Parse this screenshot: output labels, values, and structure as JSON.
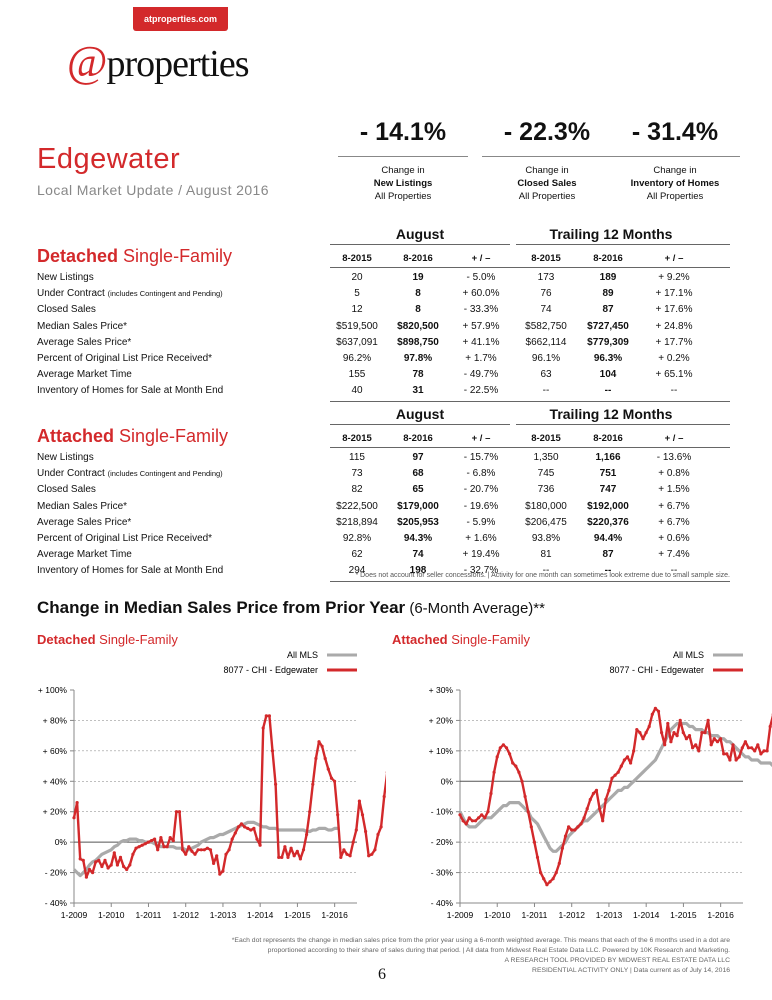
{
  "header": {
    "site": "atproperties.com",
    "logo_at": "@",
    "logo_text": "properties",
    "area": "Edgewater",
    "subtitle": "Local Market Update / August 2016"
  },
  "kpis": [
    {
      "value": "- 14.1%",
      "line1": "Change in",
      "line2": "New Listings",
      "line3": "All Properties"
    },
    {
      "value": "- 22.3%",
      "line1": "Change in",
      "line2": "Closed Sales",
      "line3": "All Properties"
    },
    {
      "value": "- 31.4%",
      "line1": "Change in",
      "line2": "Inventory of Homes",
      "line3": "All Properties"
    }
  ],
  "columns": {
    "group1": "August",
    "group2": "Trailing 12 Months",
    "h": [
      "8-2015",
      "8-2016",
      "+ / –",
      "8-2015",
      "8-2016",
      "+ / –"
    ]
  },
  "detached": {
    "title_bold": "Detached",
    "title_rest": " Single-Family",
    "rows": [
      {
        "label": "New Listings",
        "small": "",
        "v": [
          "20",
          "19",
          "- 5.0%",
          "173",
          "189",
          "+ 9.2%"
        ]
      },
      {
        "label": "Under Contract ",
        "small": "(includes Contingent and Pending)",
        "v": [
          "5",
          "8",
          "+ 60.0%",
          "76",
          "89",
          "+ 17.1%"
        ]
      },
      {
        "label": "Closed Sales",
        "small": "",
        "v": [
          "12",
          "8",
          "- 33.3%",
          "74",
          "87",
          "+ 17.6%"
        ]
      },
      {
        "label": "Median Sales Price*",
        "small": "",
        "v": [
          "$519,500",
          "$820,500",
          "+ 57.9%",
          "$582,750",
          "$727,450",
          "+ 24.8%"
        ]
      },
      {
        "label": "Average Sales Price*",
        "small": "",
        "v": [
          "$637,091",
          "$898,750",
          "+ 41.1%",
          "$662,114",
          "$779,309",
          "+ 17.7%"
        ]
      },
      {
        "label": "Percent of Original List Price Received*",
        "small": "",
        "v": [
          "96.2%",
          "97.8%",
          "+ 1.7%",
          "96.1%",
          "96.3%",
          "+ 0.2%"
        ]
      },
      {
        "label": "Average Market Time",
        "small": "",
        "v": [
          "155",
          "78",
          "- 49.7%",
          "63",
          "104",
          "+ 65.1%"
        ]
      },
      {
        "label": "Inventory of Homes for Sale at Month End",
        "small": "",
        "v": [
          "40",
          "31",
          "- 22.5%",
          "--",
          "--",
          "--"
        ]
      }
    ]
  },
  "attached": {
    "title_bold": "Attached",
    "title_rest": " Single-Family",
    "rows": [
      {
        "label": "New Listings",
        "small": "",
        "v": [
          "115",
          "97",
          "- 15.7%",
          "1,350",
          "1,166",
          "- 13.6%"
        ]
      },
      {
        "label": "Under Contract ",
        "small": "(includes Contingent and Pending)",
        "v": [
          "73",
          "68",
          "- 6.8%",
          "745",
          "751",
          "+ 0.8%"
        ]
      },
      {
        "label": "Closed Sales",
        "small": "",
        "v": [
          "82",
          "65",
          "- 20.7%",
          "736",
          "747",
          "+ 1.5%"
        ]
      },
      {
        "label": "Median Sales Price*",
        "small": "",
        "v": [
          "$222,500",
          "$179,000",
          "- 19.6%",
          "$180,000",
          "$192,000",
          "+ 6.7%"
        ]
      },
      {
        "label": "Average Sales Price*",
        "small": "",
        "v": [
          "$218,894",
          "$205,953",
          "- 5.9%",
          "$206,475",
          "$220,376",
          "+ 6.7%"
        ]
      },
      {
        "label": "Percent of Original List Price Received*",
        "small": "",
        "v": [
          "92.8%",
          "94.3%",
          "+ 1.6%",
          "93.8%",
          "94.4%",
          "+ 0.6%"
        ]
      },
      {
        "label": "Average Market Time",
        "small": "",
        "v": [
          "62",
          "74",
          "+ 19.4%",
          "81",
          "87",
          "+ 7.4%"
        ]
      },
      {
        "label": "Inventory of Homes for Sale at Month End",
        "small": "",
        "v": [
          "294",
          "198",
          "- 32.7%",
          "--",
          "--",
          "--"
        ]
      }
    ]
  },
  "table_note": "* Does not account for seller concessions.  |  Activity for one month can sometimes look extreme due to small sample size.",
  "charts_section": {
    "title": "Change in Median Sales Price from Prior Year",
    "title_suffix": " (6-Month Average)**",
    "legend_all": "All MLS",
    "legend_area": "8077 - CHI - Edgewater"
  },
  "colors": {
    "accent": "#d3292b",
    "all_mls": "#aaaaaa"
  },
  "chart_data": [
    {
      "type": "line",
      "title_bold": "Detached",
      "title_rest": " Single-Family",
      "x_start": 2009.0,
      "x_step": 0.0833,
      "xticks": [
        "1-2009",
        "1-2010",
        "1-2011",
        "1-2012",
        "1-2013",
        "1-2014",
        "1-2015",
        "1-2016"
      ],
      "yticks": [
        "+ 100%",
        "+ 80%",
        "+ 60%",
        "+ 40%",
        "+ 20%",
        "0%",
        "- 20%",
        "- 40%"
      ],
      "ylim": [
        -40,
        100
      ],
      "series": [
        {
          "name": "All MLS",
          "values": [
            -18,
            -20,
            -22,
            -20,
            -18,
            -15,
            -13,
            -12,
            -10,
            -8,
            -7,
            -6,
            -5,
            -3,
            -2,
            0,
            1,
            1,
            2,
            2,
            2,
            1,
            1,
            0,
            0,
            0,
            -1,
            -2,
            -3,
            -3,
            -3,
            -3,
            -3,
            -4,
            -4,
            -4,
            -5,
            -5,
            -4,
            -3,
            -2,
            0,
            1,
            2,
            3,
            3,
            4,
            5,
            5,
            6,
            7,
            8,
            9,
            10,
            11,
            12,
            13,
            13,
            13,
            12,
            11,
            10,
            10,
            9,
            9,
            9,
            8,
            8,
            8,
            8,
            8,
            8,
            8,
            8,
            8,
            7,
            7,
            8,
            8,
            9,
            9,
            9,
            8,
            8,
            9,
            9
          ]
        },
        {
          "name": "8077 - CHI - Edgewater",
          "values": [
            16,
            26,
            -11,
            -12,
            -23,
            -18,
            -20,
            -13,
            -12,
            -16,
            -12,
            -17,
            -15,
            -7,
            -15,
            -10,
            -16,
            -18,
            -15,
            -8,
            -4,
            -3,
            -2,
            -1,
            0,
            1,
            2,
            -5,
            3,
            -3,
            -3,
            3,
            1,
            20,
            20,
            -5,
            -8,
            -3,
            -6,
            -8,
            -5,
            -5,
            -5,
            -4,
            -5,
            -14,
            -9,
            -21,
            -19,
            -8,
            -5,
            2,
            6,
            10,
            12,
            10,
            9,
            8,
            9,
            2,
            -2,
            75,
            83,
            83,
            60,
            38,
            -10,
            -10,
            -3,
            -10,
            -4,
            -9,
            -6,
            -11,
            -5,
            5,
            20,
            38,
            55,
            66,
            63,
            55,
            48,
            42,
            40,
            18,
            -10,
            -5,
            -8,
            -9,
            0,
            8,
            27,
            18,
            7,
            -9,
            -8,
            -5,
            5,
            10,
            30,
            46,
            43,
            38,
            22,
            17,
            16,
            20
          ]
        }
      ]
    },
    {
      "type": "line",
      "title_bold": "Attached",
      "title_rest": " Single-Family",
      "x_start": 2009.0,
      "x_step": 0.0833,
      "xticks": [
        "1-2009",
        "1-2010",
        "1-2011",
        "1-2012",
        "1-2013",
        "1-2014",
        "1-2015",
        "1-2016"
      ],
      "yticks": [
        "+ 30%",
        "+ 20%",
        "+ 10%",
        "0%",
        "- 10%",
        "- 20%",
        "- 30%",
        "- 40%"
      ],
      "ylim": [
        -40,
        30
      ],
      "series": [
        {
          "name": "All MLS",
          "values": [
            -10,
            -12,
            -14,
            -15,
            -15,
            -15,
            -14,
            -13,
            -12,
            -12,
            -12,
            -11,
            -10,
            -9,
            -8,
            -8,
            -7,
            -7,
            -7,
            -7,
            -8,
            -9,
            -10,
            -12,
            -13,
            -14,
            -16,
            -18,
            -20,
            -22,
            -23,
            -23,
            -22,
            -21,
            -20,
            -18,
            -17,
            -16,
            -15,
            -14,
            -13,
            -13,
            -12,
            -11,
            -10,
            -9,
            -8,
            -7,
            -6,
            -5,
            -4,
            -3,
            -3,
            -2,
            -2,
            -1,
            0,
            1,
            2,
            3,
            4,
            5,
            6,
            7,
            9,
            11,
            13,
            15,
            17,
            18,
            19,
            19,
            19,
            19,
            18,
            18,
            17,
            17,
            17,
            16,
            16,
            15,
            15,
            15,
            14,
            14,
            13,
            13,
            12,
            11,
            10,
            9,
            8,
            8,
            7,
            7,
            7,
            6,
            6,
            6,
            6,
            5,
            5,
            5,
            5,
            4,
            4,
            3
          ]
        },
        {
          "name": "8077 - CHI - Edgewater",
          "values": [
            -11,
            -13,
            -14,
            -12,
            -13,
            -13,
            -12,
            -11,
            -12,
            -10,
            -4,
            3,
            8,
            11,
            12,
            11,
            9,
            6,
            5,
            3,
            0,
            -5,
            -10,
            -15,
            -20,
            -25,
            -30,
            -32,
            -34,
            -33,
            -32,
            -30,
            -27,
            -22,
            -18,
            -15,
            -16,
            -16,
            -15,
            -14,
            -12,
            -9,
            -6,
            -4,
            -3,
            -9,
            -13,
            -6,
            -3,
            1,
            2,
            3,
            5,
            7,
            8,
            6,
            10,
            17,
            16,
            14,
            16,
            18,
            22,
            24,
            23,
            16,
            12,
            19,
            13,
            16,
            15,
            20,
            16,
            14,
            15,
            11,
            12,
            10,
            16,
            16,
            20,
            12,
            14,
            13,
            14,
            9,
            9,
            7,
            12,
            7,
            8,
            11,
            13,
            11,
            11,
            10,
            12,
            9,
            10,
            10,
            18,
            22,
            16,
            14,
            7,
            3,
            -2
          ]
        }
      ]
    }
  ],
  "footnote": {
    "line1": "*Each dot represents the change in median sales price from the prior year using a 6-month weighted average. This means that each of the 6 months used in a dot are",
    "line2": "proportioned according to their share of sales during that period.  |  All data from Midwest Real Estate Data LLC. Powered by 10K Research and Marketing.",
    "line3": "A RESEARCH TOOL PROVIDED BY MIDWEST REAL ESTATE DATA LLC",
    "line4": "RESIDENTIAL ACTIVITY ONLY  |  Data current as of July 14, 2016"
  },
  "page_number": "6"
}
